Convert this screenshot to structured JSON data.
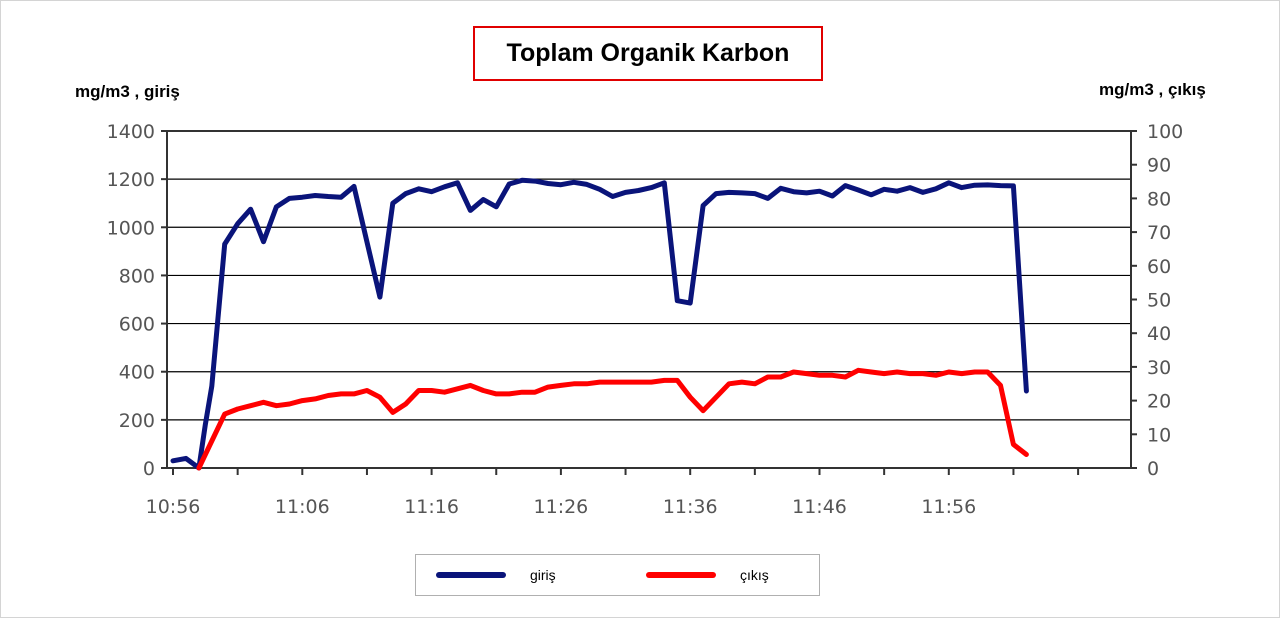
{
  "chart_data": {
    "type": "line",
    "title": "Toplam Organik Karbon",
    "ylabel_left": "mg/m3 , giriş",
    "ylabel_right": "mg/m3 , çıkış",
    "x_ticks": [
      "10:56",
      "11:06",
      "11:16",
      "11:26",
      "11:36",
      "11:46",
      "11:56"
    ],
    "x_start": "10:56",
    "x_step_minutes": 1,
    "ylim_left": [
      0,
      1400
    ],
    "yticks_left": [
      0,
      200,
      400,
      600,
      800,
      1000,
      1200,
      1400
    ],
    "ylim_right": [
      0,
      100
    ],
    "yticks_right": [
      0,
      10,
      20,
      30,
      40,
      50,
      60,
      70,
      80,
      90,
      100
    ],
    "grid": true,
    "legend_position": "bottom",
    "series": [
      {
        "name": "giriş",
        "axis": "left",
        "color": "#0a147a",
        "points": [
          [
            0,
            30
          ],
          [
            1,
            40
          ],
          [
            2,
            0
          ],
          [
            2.5,
            180
          ],
          [
            3,
            340
          ],
          [
            4,
            930
          ],
          [
            5,
            1015
          ],
          [
            6,
            1075
          ],
          [
            7,
            940
          ],
          [
            8,
            1085
          ],
          [
            9,
            1120
          ],
          [
            10,
            1125
          ],
          [
            11,
            1132
          ],
          [
            12,
            1128
          ],
          [
            13,
            1125
          ],
          [
            14,
            1170
          ],
          [
            15,
            940
          ],
          [
            16,
            710
          ],
          [
            17,
            1100
          ],
          [
            18,
            1140
          ],
          [
            19,
            1160
          ],
          [
            20,
            1148
          ],
          [
            21,
            1168
          ],
          [
            22,
            1185
          ],
          [
            23,
            1070
          ],
          [
            24,
            1115
          ],
          [
            25,
            1085
          ],
          [
            26,
            1180
          ],
          [
            27,
            1195
          ],
          [
            28,
            1192
          ],
          [
            29,
            1182
          ],
          [
            30,
            1177
          ],
          [
            31,
            1187
          ],
          [
            32,
            1178
          ],
          [
            33,
            1158
          ],
          [
            34,
            1128
          ],
          [
            35,
            1145
          ],
          [
            36,
            1153
          ],
          [
            37,
            1165
          ],
          [
            38,
            1185
          ],
          [
            39,
            695
          ],
          [
            40,
            685
          ],
          [
            41,
            1090
          ],
          [
            42,
            1140
          ],
          [
            43,
            1145
          ],
          [
            44,
            1143
          ],
          [
            45,
            1140
          ],
          [
            46,
            1120
          ],
          [
            47,
            1162
          ],
          [
            48,
            1148
          ],
          [
            49,
            1143
          ],
          [
            50,
            1150
          ],
          [
            51,
            1130
          ],
          [
            52,
            1173
          ],
          [
            53,
            1155
          ],
          [
            54,
            1135
          ],
          [
            55,
            1158
          ],
          [
            56,
            1150
          ],
          [
            57,
            1165
          ],
          [
            58,
            1145
          ],
          [
            59,
            1160
          ],
          [
            60,
            1185
          ],
          [
            61,
            1165
          ],
          [
            62,
            1175
          ],
          [
            63,
            1176
          ],
          [
            64,
            1173
          ],
          [
            65,
            1172
          ],
          [
            66,
            320
          ]
        ]
      },
      {
        "name": "çıkış",
        "axis": "right",
        "color": "#ff0000",
        "points": [
          [
            2,
            0
          ],
          [
            3,
            8
          ],
          [
            4,
            16
          ],
          [
            5,
            17.5
          ],
          [
            6,
            18.5
          ],
          [
            7,
            19.5
          ],
          [
            8,
            18.5
          ],
          [
            9,
            19
          ],
          [
            10,
            20
          ],
          [
            11,
            20.5
          ],
          [
            12,
            21.5
          ],
          [
            13,
            22
          ],
          [
            14,
            22
          ],
          [
            15,
            23
          ],
          [
            16,
            21
          ],
          [
            17,
            16.5
          ],
          [
            18,
            19
          ],
          [
            19,
            23
          ],
          [
            20,
            23
          ],
          [
            21,
            22.5
          ],
          [
            22,
            23.5
          ],
          [
            23,
            24.5
          ],
          [
            24,
            23
          ],
          [
            25,
            22
          ],
          [
            26,
            22
          ],
          [
            27,
            22.5
          ],
          [
            28,
            22.5
          ],
          [
            29,
            24
          ],
          [
            30,
            24.5
          ],
          [
            31,
            25
          ],
          [
            32,
            25
          ],
          [
            33,
            25.5
          ],
          [
            34,
            25.5
          ],
          [
            35,
            25.5
          ],
          [
            36,
            25.5
          ],
          [
            37,
            25.5
          ],
          [
            38,
            26
          ],
          [
            39,
            26
          ],
          [
            40,
            21
          ],
          [
            41,
            17
          ],
          [
            42,
            21
          ],
          [
            43,
            25
          ],
          [
            44,
            25.5
          ],
          [
            45,
            25
          ],
          [
            46,
            27
          ],
          [
            47,
            27
          ],
          [
            48,
            28.5
          ],
          [
            49,
            28
          ],
          [
            50,
            27.5
          ],
          [
            51,
            27.5
          ],
          [
            52,
            27
          ],
          [
            53,
            29
          ],
          [
            54,
            28.5
          ],
          [
            55,
            28
          ],
          [
            56,
            28.5
          ],
          [
            57,
            28
          ],
          [
            58,
            28
          ],
          [
            59,
            27.5
          ],
          [
            60,
            28.5
          ],
          [
            61,
            28
          ],
          [
            62,
            28.5
          ],
          [
            63,
            28.5
          ],
          [
            64,
            24.5
          ],
          [
            65,
            7
          ],
          [
            66,
            4
          ]
        ]
      }
    ]
  }
}
